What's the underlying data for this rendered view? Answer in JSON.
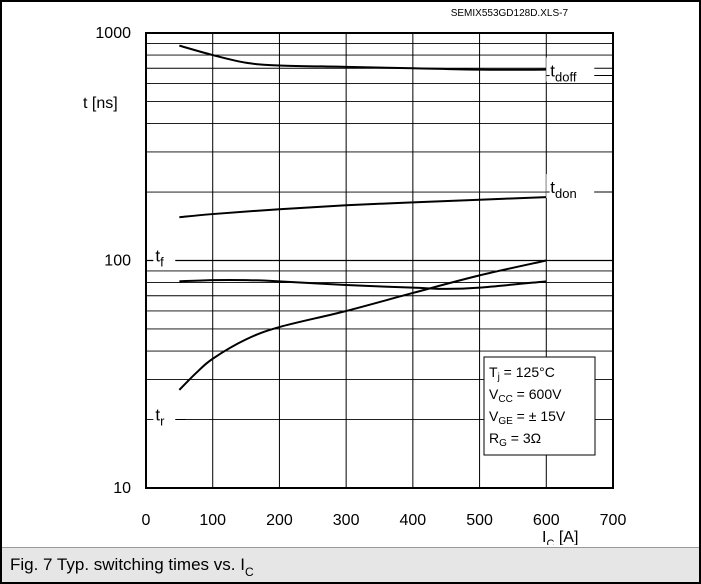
{
  "figure_id": "SEMIX553GD128D.XLS-7",
  "caption": {
    "prefix": "Fig. 7 Typ. switching times vs. I",
    "subscript": "C"
  },
  "chart_data": {
    "type": "line",
    "xlabel_main": "I",
    "xlabel_sub": "C",
    "xlabel_unit": " [A]",
    "ylabel": "t [ns]",
    "xlim": [
      0,
      700
    ],
    "ylim": [
      10,
      1000
    ],
    "yscale": "log",
    "grid": true,
    "x_ticks": [
      0,
      100,
      200,
      300,
      400,
      500,
      600,
      700
    ],
    "x_tick_labels": [
      "0",
      "100",
      "200",
      "300",
      "400",
      "500",
      "600",
      "700"
    ],
    "y_ticks": [
      10,
      100,
      1000
    ],
    "y_tick_labels": [
      "10",
      "100",
      "1000"
    ],
    "series": [
      {
        "name": "t",
        "sub": "doff",
        "label_at": [
          606,
          650
        ],
        "x": [
          50,
          100,
          150,
          200,
          300,
          400,
          500,
          600
        ],
        "y": [
          880,
          800,
          740,
          720,
          710,
          700,
          690,
          690
        ]
      },
      {
        "name": "t",
        "sub": "don",
        "label_at": [
          606,
          200
        ],
        "x": [
          50,
          100,
          200,
          300,
          400,
          500,
          600
        ],
        "y": [
          155,
          160,
          168,
          175,
          180,
          185,
          190
        ]
      },
      {
        "name": "t",
        "sub": "f",
        "label_at": [
          20,
          100
        ],
        "x": [
          50,
          100,
          150,
          200,
          300,
          400,
          450,
          500,
          600
        ],
        "y": [
          81,
          82,
          82,
          81,
          78,
          76,
          75,
          76,
          81
        ]
      },
      {
        "name": "t",
        "sub": "r",
        "label_at": [
          20,
          20
        ],
        "x": [
          50,
          75,
          100,
          150,
          200,
          300,
          400,
          500,
          600
        ],
        "y": [
          27,
          32,
          37,
          45,
          51,
          60,
          72,
          86,
          100
        ]
      }
    ],
    "legend": [
      {
        "main": "T",
        "sub": "j",
        "value": " = 125°C"
      },
      {
        "main": "V",
        "sub": "CC",
        "value": " = 600V"
      },
      {
        "main": "V",
        "sub": "GE",
        "value": " = ± 15V"
      },
      {
        "main": "R",
        "sub": "G",
        "value": " = 3Ω"
      }
    ],
    "legend_position": "bottom-right"
  }
}
